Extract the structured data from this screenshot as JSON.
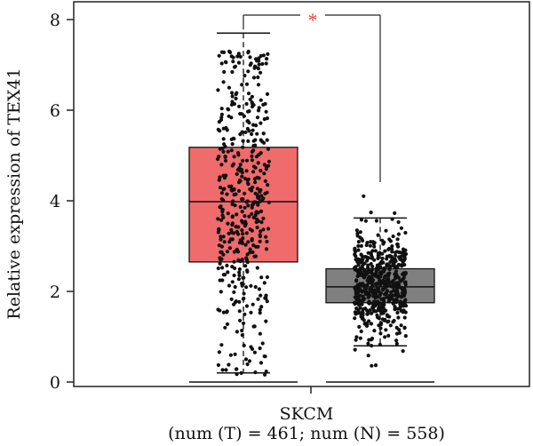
{
  "chart_data": {
    "type": "box",
    "ylabel": "Relative expression of TEX41",
    "xlabel": "SKCM",
    "x_sublabel": "(num (T) = 461; num (N) = 558)",
    "ylim": [
      0,
      8
    ],
    "yticks": [
      "0",
      "2",
      "4",
      "6",
      "8"
    ],
    "significance": "*",
    "grid": false,
    "series": [
      {
        "group": "T",
        "count": 461,
        "color": "#f06b6b",
        "box": {
          "whisker_low": 0.2,
          "q1": 2.65,
          "median": 3.98,
          "q3": 5.18,
          "whisker_high": 7.7
        },
        "points_range": [
          0.15,
          7.3
        ]
      },
      {
        "group": "N",
        "count": 558,
        "color": "#808080",
        "box": {
          "whisker_low": 0.8,
          "q1": 1.75,
          "median": 2.1,
          "q3": 2.5,
          "whisker_high": 3.62
        },
        "points_range": [
          0.15,
          4.2
        ]
      }
    ]
  }
}
